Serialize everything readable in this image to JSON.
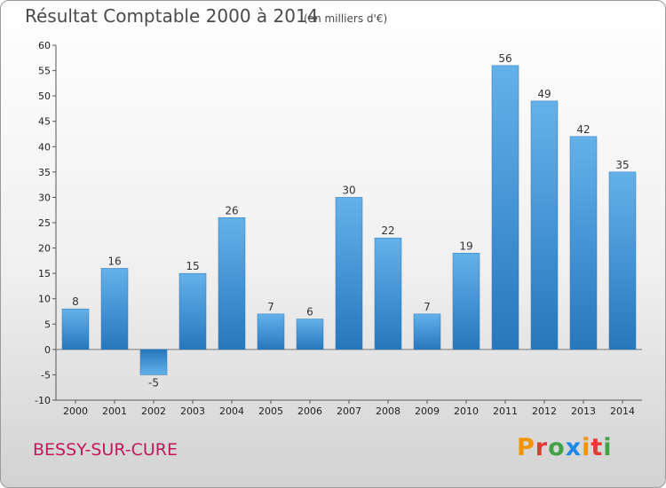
{
  "chart_data": {
    "type": "bar",
    "title": "Résultat Comptable 2000 à 2014",
    "subtitle": "(en milliers d'€)",
    "xlabel": "",
    "ylabel": "",
    "categories": [
      "2000",
      "2001",
      "2002",
      "2003",
      "2004",
      "2005",
      "2006",
      "2007",
      "2008",
      "2009",
      "2010",
      "2011",
      "2012",
      "2013",
      "2014"
    ],
    "values": [
      8,
      16,
      -5,
      15,
      26,
      7,
      6,
      30,
      22,
      7,
      19,
      56,
      49,
      42,
      35
    ],
    "ylim": [
      -10,
      60
    ],
    "yticks": [
      -10,
      -5,
      0,
      5,
      10,
      15,
      20,
      25,
      30,
      35,
      40,
      45,
      50,
      55,
      60
    ],
    "grid": false,
    "bar_color": "#3a8fd6",
    "bar_color_light": "#64b1ea",
    "bar_color_dark": "#2777bd"
  },
  "footer": {
    "place": "BESSY-SUR-CURE",
    "brand": "Proxiti"
  },
  "colors": {
    "place_text": "#c2185b",
    "brand_letters": [
      "#f29400",
      "#e53935",
      "#43a047",
      "#1e88e5",
      "#f29400",
      "#e53935",
      "#43a047"
    ]
  }
}
